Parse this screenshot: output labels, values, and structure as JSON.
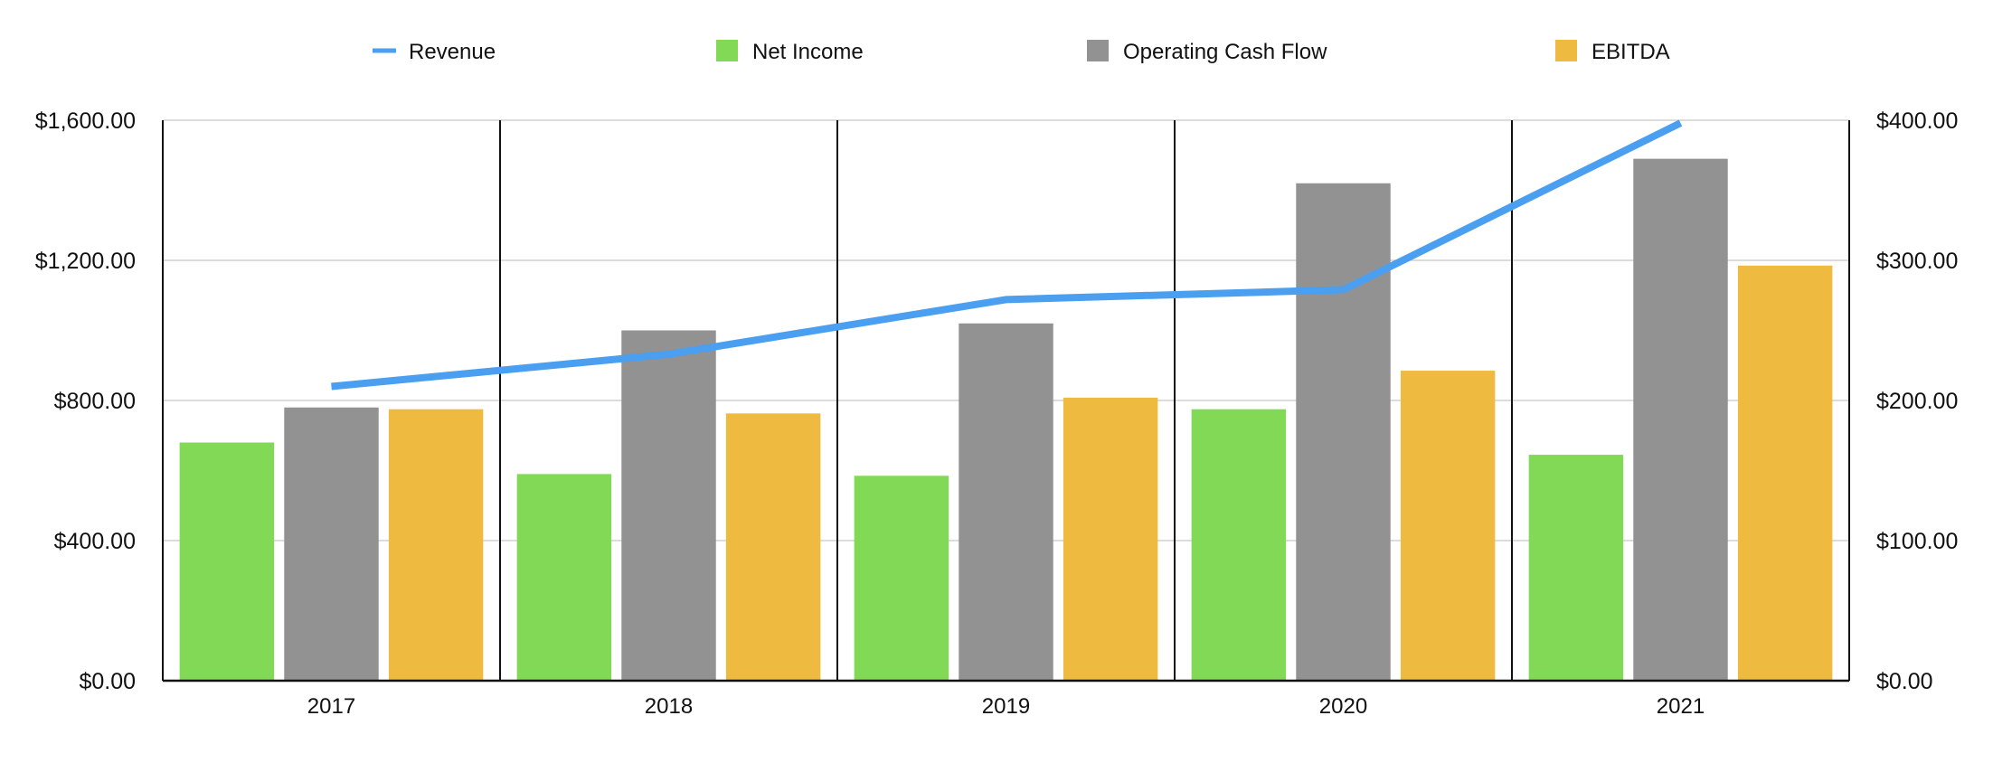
{
  "chart_data": {
    "type": "bar",
    "categories": [
      "2017",
      "2018",
      "2019",
      "2020",
      "2021"
    ],
    "series": [
      {
        "name": "Net Income",
        "kind": "bar",
        "axis": "left",
        "color": "#82d955",
        "values": [
          680,
          590,
          585,
          775,
          645
        ]
      },
      {
        "name": "Operating Cash Flow",
        "kind": "bar",
        "axis": "left",
        "color": "#929292",
        "values": [
          780,
          1000,
          1020,
          1420,
          1490
        ]
      },
      {
        "name": "EBITDA",
        "kind": "bar",
        "axis": "left",
        "color": "#eebb40",
        "values": [
          775,
          763,
          808,
          885,
          1185
        ]
      },
      {
        "name": "Revenue",
        "kind": "line",
        "axis": "right",
        "color": "#4a9ff0",
        "values": [
          210,
          233,
          272,
          279,
          398
        ]
      }
    ],
    "legend": [
      "Revenue",
      "Net Income",
      "Operating Cash Flow",
      "EBITDA"
    ],
    "legend_position": "top",
    "y_left": {
      "min": 0,
      "max": 1600,
      "ticks": [
        0,
        400,
        800,
        1200,
        1600
      ],
      "tick_labels": [
        "$0.00",
        "$400.00",
        "$800.00",
        "$1,200.00",
        "$1,600.00"
      ]
    },
    "y_right": {
      "min": 0,
      "max": 400,
      "ticks": [
        0,
        100,
        200,
        300,
        400
      ],
      "tick_labels": [
        "$0.00",
        "$100.00",
        "$200.00",
        "$300.00",
        "$400.00"
      ]
    },
    "grid": true
  }
}
